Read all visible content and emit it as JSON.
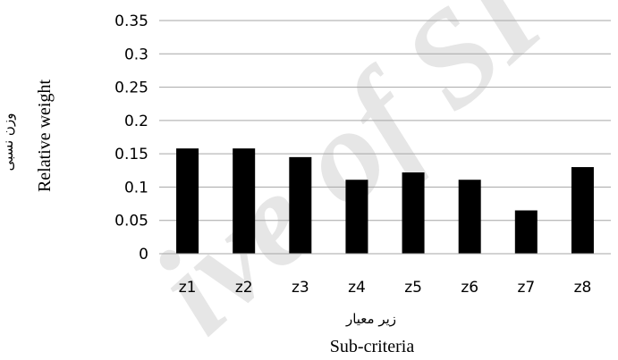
{
  "chart_data": {
    "type": "bar",
    "categories": [
      "z1",
      "z2",
      "z3",
      "z4",
      "z5",
      "z6",
      "z7",
      "z8"
    ],
    "values": [
      0.158,
      0.158,
      0.145,
      0.111,
      0.122,
      0.111,
      0.065,
      0.13
    ],
    "title": "",
    "xlabel_fa": "زیر معیار",
    "xlabel": "Sub-criteria",
    "ylabel_fa": "وزن نسبی",
    "ylabel": "Relative weight",
    "ylim": [
      0,
      0.35
    ],
    "yticks": [
      "0",
      "0.05",
      "0.1",
      "0.15",
      "0.2",
      "0.25",
      "0.3",
      "0.35"
    ],
    "ytick_values": [
      0,
      0.05,
      0.1,
      0.15,
      0.2,
      0.25,
      0.3,
      0.35
    ],
    "grid": true,
    "bar_color": "#000000",
    "grid_color": "#a6a6a6",
    "watermark": "ive of SI"
  }
}
